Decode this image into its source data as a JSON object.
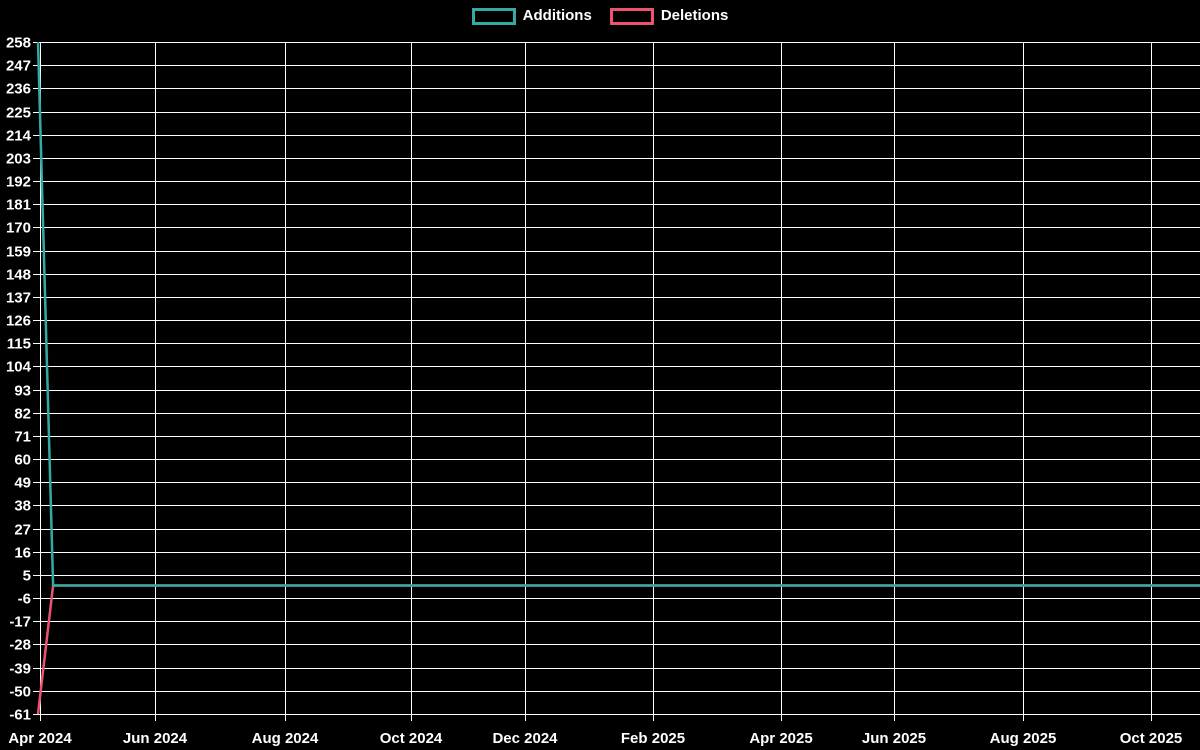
{
  "page": {
    "background_color": "#000000"
  },
  "chart_data": {
    "type": "line",
    "title": "",
    "legend_position": "top-center",
    "background_color": "#000000",
    "grid": true,
    "grid_color": "#ffffff",
    "text_color": "#ffffff",
    "x_tick_labels": [
      "Apr 2024",
      "Jun 2024",
      "Aug 2024",
      "Oct 2024",
      "Dec 2024",
      "Feb 2025",
      "Apr 2025",
      "Jun 2025",
      "Aug 2025",
      "Oct 2025"
    ],
    "y_tick_labels": [
      258,
      247,
      236,
      225,
      214,
      203,
      192,
      181,
      170,
      159,
      148,
      137,
      126,
      115,
      104,
      93,
      82,
      71,
      60,
      49,
      38,
      27,
      16,
      5,
      -6,
      -17,
      -28,
      -39,
      -50,
      -61
    ],
    "ylim": [
      -61,
      258
    ],
    "x_range": [
      "2024-03-31",
      "2025-10-26"
    ],
    "x_unit": "week",
    "series": [
      {
        "name": "Additions",
        "color": "#35aaa4",
        "points": [
          {
            "date": "2024-03-31",
            "value": 258
          },
          {
            "date": "2024-04-07",
            "value": 0
          },
          {
            "date": "2025-10-26",
            "value": 0
          }
        ],
        "note": "value is 0 every week from 2024-04-07 through end of chart"
      },
      {
        "name": "Deletions",
        "color": "#ec5370",
        "points": [
          {
            "date": "2024-03-31",
            "value": -61
          },
          {
            "date": "2024-04-07",
            "value": 0
          },
          {
            "date": "2025-10-26",
            "value": 0
          }
        ],
        "note": "value is 0 every week from 2024-04-07 through end of chart"
      }
    ]
  }
}
